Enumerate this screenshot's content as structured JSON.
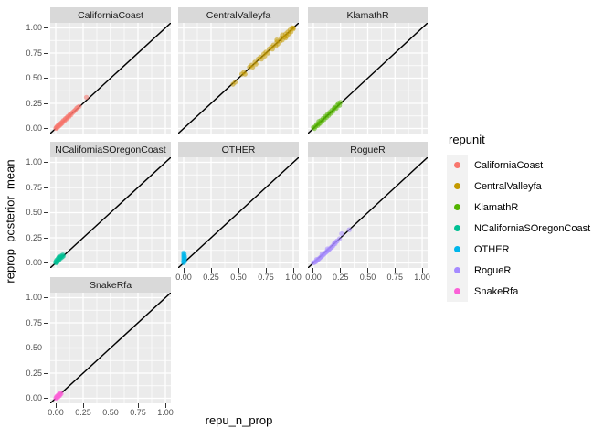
{
  "chart_data": {
    "type": "scatter",
    "xlabel": "repu_n_prop",
    "ylabel": "reprop_posterior_mean",
    "legend_title": "repunit",
    "legend_position": "right",
    "grid": true,
    "reference_line": "y = x",
    "xlim": [
      -0.05,
      1.05
    ],
    "ylim": [
      -0.05,
      1.05
    ],
    "x_ticks": {
      "values": [
        0,
        0.25,
        0.5,
        0.75,
        1.0
      ],
      "labels": [
        "0.00",
        "0.25",
        "0.50",
        "0.75",
        "1.00"
      ]
    },
    "y_ticks": {
      "values": [
        0,
        0.25,
        0.5,
        0.75,
        1.0
      ],
      "labels": [
        "0.00",
        "0.25",
        "0.50",
        "0.75",
        "1.00"
      ]
    },
    "facets": [
      {
        "label": "CaliforniaCoast",
        "color": "#F8766D",
        "points": [
          [
            0.0,
            0.0
          ],
          [
            0.005,
            0.01
          ],
          [
            0.01,
            0.005
          ],
          [
            0.012,
            0.02
          ],
          [
            0.02,
            0.015
          ],
          [
            0.02,
            0.03
          ],
          [
            0.03,
            0.025
          ],
          [
            0.03,
            0.04
          ],
          [
            0.04,
            0.035
          ],
          [
            0.045,
            0.05
          ],
          [
            0.05,
            0.045
          ],
          [
            0.055,
            0.06
          ],
          [
            0.06,
            0.055
          ],
          [
            0.065,
            0.07
          ],
          [
            0.07,
            0.08
          ],
          [
            0.08,
            0.075
          ],
          [
            0.085,
            0.09
          ],
          [
            0.09,
            0.1
          ],
          [
            0.1,
            0.095
          ],
          [
            0.105,
            0.11
          ],
          [
            0.11,
            0.12
          ],
          [
            0.12,
            0.115
          ],
          [
            0.125,
            0.13
          ],
          [
            0.13,
            0.14
          ],
          [
            0.14,
            0.135
          ],
          [
            0.15,
            0.155
          ],
          [
            0.16,
            0.165
          ],
          [
            0.17,
            0.175
          ],
          [
            0.18,
            0.185
          ],
          [
            0.19,
            0.2
          ],
          [
            0.2,
            0.21
          ],
          [
            0.215,
            0.22
          ],
          [
            0.28,
            0.31
          ]
        ]
      },
      {
        "label": "CentralValleyfa",
        "color": "#C49A00",
        "points": [
          [
            0.45,
            0.44
          ],
          [
            0.47,
            0.46
          ],
          [
            0.53,
            0.54
          ],
          [
            0.55,
            0.56
          ],
          [
            0.56,
            0.54
          ],
          [
            0.6,
            0.61
          ],
          [
            0.62,
            0.63
          ],
          [
            0.63,
            0.61
          ],
          [
            0.65,
            0.66
          ],
          [
            0.66,
            0.64
          ],
          [
            0.68,
            0.69
          ],
          [
            0.7,
            0.71
          ],
          [
            0.71,
            0.69
          ],
          [
            0.73,
            0.74
          ],
          [
            0.74,
            0.72
          ],
          [
            0.75,
            0.76
          ],
          [
            0.77,
            0.75
          ],
          [
            0.78,
            0.79
          ],
          [
            0.8,
            0.81
          ],
          [
            0.81,
            0.79
          ],
          [
            0.82,
            0.83
          ],
          [
            0.84,
            0.82
          ],
          [
            0.85,
            0.86
          ],
          [
            0.85,
            0.88
          ],
          [
            0.86,
            0.84
          ],
          [
            0.88,
            0.87
          ],
          [
            0.89,
            0.9
          ],
          [
            0.9,
            0.88
          ],
          [
            0.9,
            0.93
          ],
          [
            0.92,
            0.91
          ],
          [
            0.93,
            0.9
          ],
          [
            0.93,
            0.94
          ],
          [
            0.94,
            0.92
          ],
          [
            0.95,
            0.96
          ],
          [
            0.96,
            0.94
          ],
          [
            0.97,
            0.98
          ],
          [
            0.98,
            0.96
          ],
          [
            0.99,
            1.0
          ],
          [
            1.0,
            0.99
          ],
          [
            1.0,
            1.0
          ]
        ]
      },
      {
        "label": "KlamathR",
        "color": "#53B400",
        "points": [
          [
            0.0,
            0.01
          ],
          [
            0.01,
            0.0
          ],
          [
            0.02,
            0.02
          ],
          [
            0.03,
            0.04
          ],
          [
            0.04,
            0.03
          ],
          [
            0.05,
            0.05
          ],
          [
            0.05,
            0.07
          ],
          [
            0.06,
            0.05
          ],
          [
            0.07,
            0.08
          ],
          [
            0.08,
            0.07
          ],
          [
            0.09,
            0.1
          ],
          [
            0.1,
            0.09
          ],
          [
            0.11,
            0.12
          ],
          [
            0.12,
            0.11
          ],
          [
            0.13,
            0.14
          ],
          [
            0.14,
            0.13
          ],
          [
            0.15,
            0.16
          ],
          [
            0.16,
            0.15
          ],
          [
            0.17,
            0.18
          ],
          [
            0.18,
            0.17
          ],
          [
            0.19,
            0.2
          ],
          [
            0.2,
            0.21
          ],
          [
            0.21,
            0.2
          ],
          [
            0.22,
            0.23
          ],
          [
            0.23,
            0.25
          ],
          [
            0.24,
            0.23
          ],
          [
            0.25,
            0.26
          ]
        ]
      },
      {
        "label": "NCaliforniaSOregonCoast",
        "color": "#00C094",
        "points": [
          [
            0.0,
            0.0
          ],
          [
            0.0,
            0.01
          ],
          [
            0.005,
            0.02
          ],
          [
            0.01,
            0.005
          ],
          [
            0.01,
            0.03
          ],
          [
            0.015,
            0.01
          ],
          [
            0.02,
            0.02
          ],
          [
            0.02,
            0.04
          ],
          [
            0.025,
            0.05
          ],
          [
            0.03,
            0.03
          ],
          [
            0.03,
            0.06
          ],
          [
            0.035,
            0.04
          ],
          [
            0.04,
            0.05
          ],
          [
            0.045,
            0.06
          ],
          [
            0.05,
            0.05
          ],
          [
            0.05,
            0.07
          ],
          [
            0.06,
            0.06
          ],
          [
            0.065,
            0.08
          ],
          [
            0.07,
            0.07
          ]
        ]
      },
      {
        "label": "OTHER",
        "color": "#00B6EB",
        "points": [
          [
            0.0,
            0.0
          ],
          [
            0.0,
            0.01
          ],
          [
            0.0,
            0.02
          ],
          [
            0.005,
            0.03
          ],
          [
            0.0,
            0.04
          ],
          [
            0.005,
            0.05
          ],
          [
            0.0,
            0.06
          ],
          [
            0.005,
            0.07
          ],
          [
            0.0,
            0.08
          ],
          [
            0.005,
            0.09
          ],
          [
            0.0,
            0.1
          ],
          [
            0.01,
            0.015
          ],
          [
            0.01,
            0.045
          ],
          [
            0.008,
            0.065
          ]
        ]
      },
      {
        "label": "RogueR",
        "color": "#A58AFF",
        "points": [
          [
            0.0,
            0.0
          ],
          [
            0.01,
            0.005
          ],
          [
            0.02,
            0.01
          ],
          [
            0.03,
            0.02
          ],
          [
            0.03,
            0.035
          ],
          [
            0.04,
            0.03
          ],
          [
            0.05,
            0.04
          ],
          [
            0.06,
            0.05
          ],
          [
            0.07,
            0.06
          ],
          [
            0.08,
            0.07
          ],
          [
            0.08,
            0.09
          ],
          [
            0.09,
            0.08
          ],
          [
            0.1,
            0.09
          ],
          [
            0.11,
            0.1
          ],
          [
            0.12,
            0.11
          ],
          [
            0.13,
            0.12
          ],
          [
            0.13,
            0.14
          ],
          [
            0.14,
            0.13
          ],
          [
            0.15,
            0.14
          ],
          [
            0.16,
            0.15
          ],
          [
            0.17,
            0.16
          ],
          [
            0.18,
            0.17
          ],
          [
            0.19,
            0.19
          ],
          [
            0.2,
            0.19
          ],
          [
            0.21,
            0.21
          ],
          [
            0.22,
            0.22
          ],
          [
            0.24,
            0.24
          ],
          [
            0.26,
            0.29
          ],
          [
            0.33,
            0.33
          ]
        ]
      },
      {
        "label": "SnakeRfa",
        "color": "#FB61D7",
        "points": [
          [
            0.0,
            0.0
          ],
          [
            0.005,
            0.01
          ],
          [
            0.01,
            0.005
          ],
          [
            0.01,
            0.02
          ],
          [
            0.015,
            0.015
          ],
          [
            0.02,
            0.01
          ],
          [
            0.02,
            0.03
          ],
          [
            0.025,
            0.02
          ],
          [
            0.03,
            0.03
          ],
          [
            0.03,
            0.04
          ],
          [
            0.035,
            0.025
          ],
          [
            0.04,
            0.04
          ],
          [
            0.045,
            0.05
          ],
          [
            0.05,
            0.045
          ]
        ]
      }
    ],
    "style_colors": {
      "panel_background": "#EBEBEB",
      "strip_background": "#D9D9D9",
      "gridline": "#FFFFFF",
      "reference_line_color": "#000000",
      "tick_label_color": "#4D4D4D",
      "legend_key_background": "#F2F2F2"
    }
  }
}
